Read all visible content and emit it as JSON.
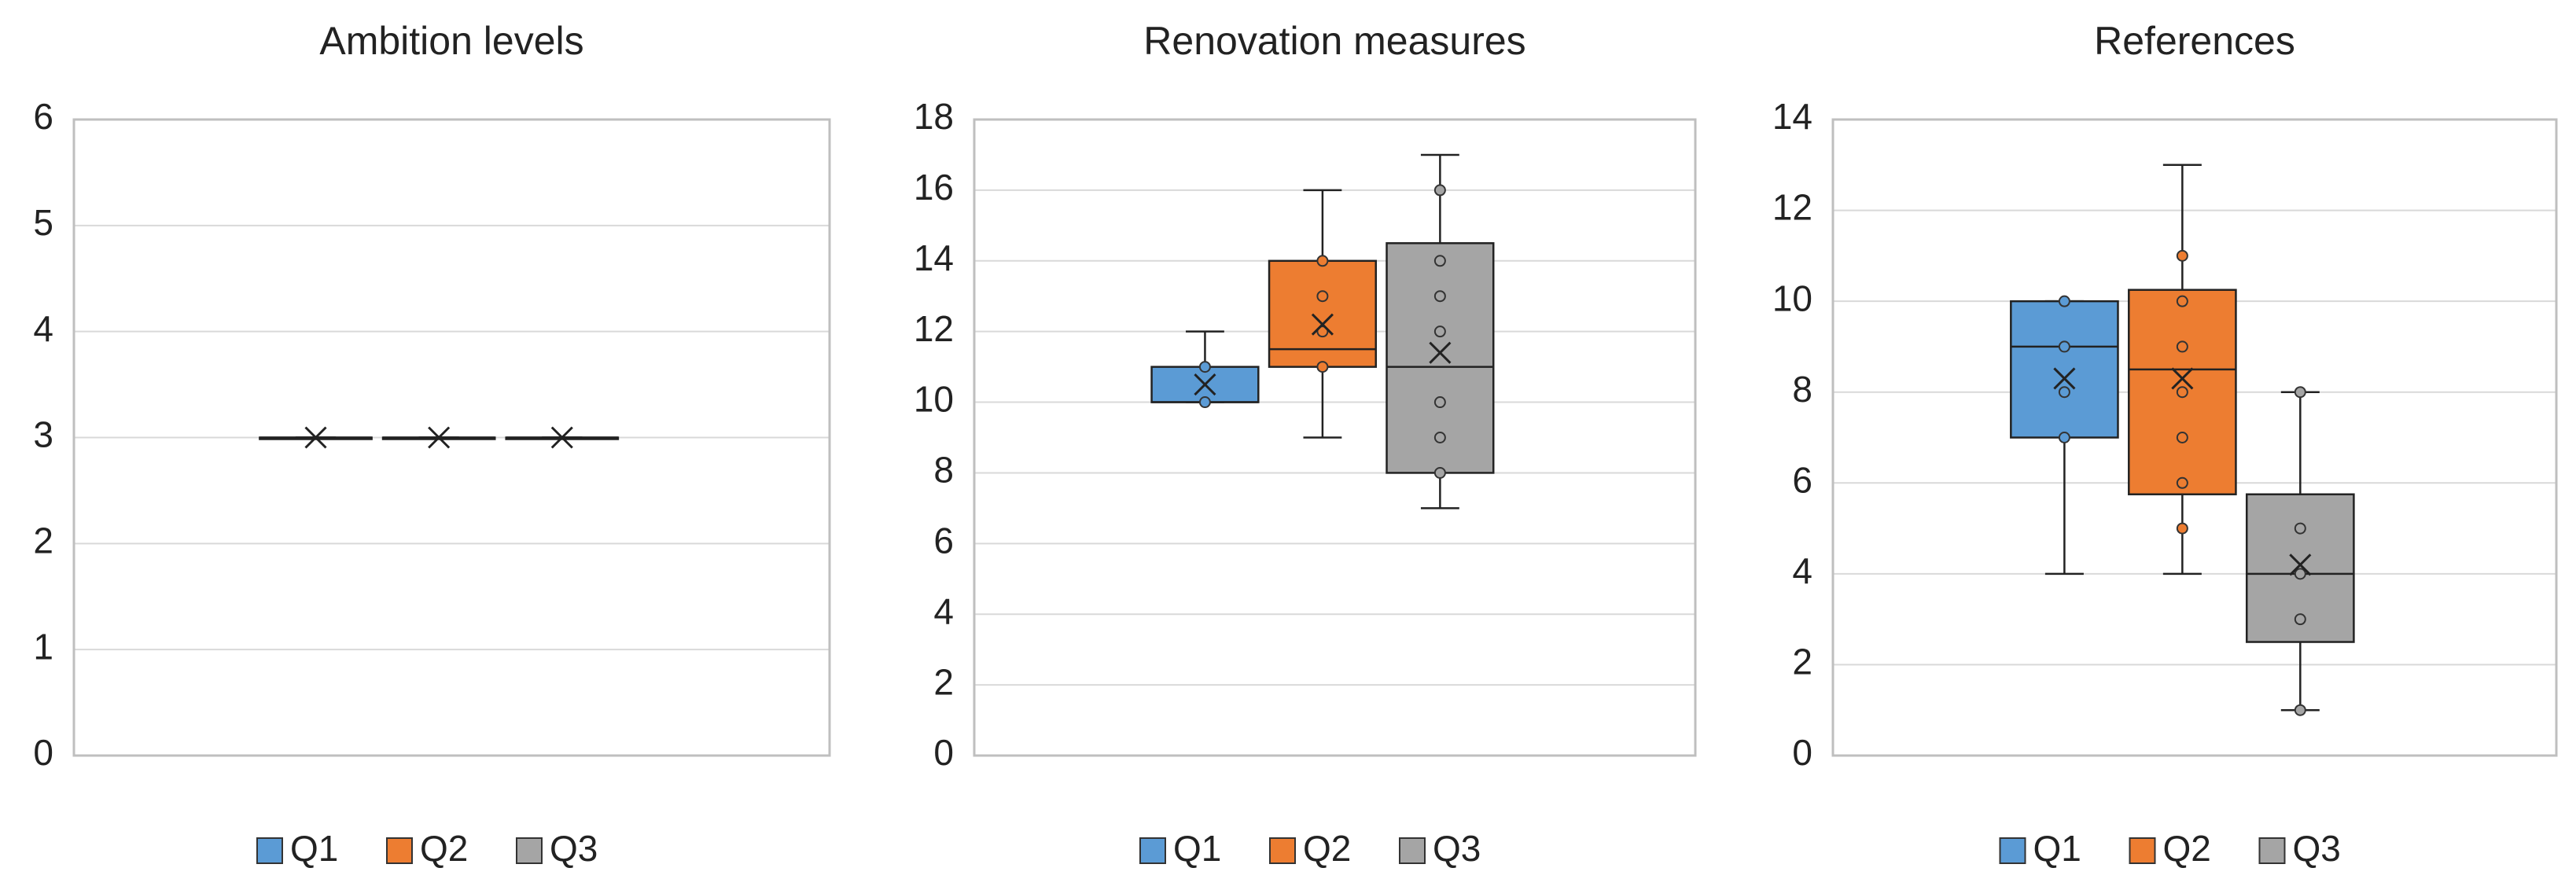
{
  "chart_data": [
    {
      "type": "box",
      "title": "Ambition levels",
      "ylim": [
        0,
        6
      ],
      "yticks": [
        0,
        1,
        2,
        3,
        4,
        5,
        6
      ],
      "grid": true,
      "series": [
        {
          "name": "Q1",
          "color": "#5b9bd5",
          "min": 3,
          "q1": 3,
          "median": 3,
          "q3": 3,
          "max": 3,
          "mean": 3,
          "points": []
        },
        {
          "name": "Q2",
          "color": "#ed7d31",
          "min": 3,
          "q1": 3,
          "median": 3,
          "q3": 3,
          "max": 3,
          "mean": 3,
          "points": []
        },
        {
          "name": "Q3",
          "color": "#a5a5a5",
          "min": 3,
          "q1": 3,
          "median": 3,
          "q3": 3,
          "max": 3,
          "mean": 3,
          "points": []
        }
      ]
    },
    {
      "type": "box",
      "title": "Renovation measures",
      "ylim": [
        0,
        18
      ],
      "yticks": [
        0,
        2,
        4,
        6,
        8,
        10,
        12,
        14,
        16,
        18
      ],
      "grid": true,
      "series": [
        {
          "name": "Q1",
          "color": "#5b9bd5",
          "min": 10,
          "q1": 10,
          "median": 10,
          "q3": 11,
          "max": 12,
          "mean": 10.5,
          "points": [
            10,
            11
          ]
        },
        {
          "name": "Q2",
          "color": "#ed7d31",
          "min": 9,
          "q1": 11,
          "median": 11.5,
          "q3": 14,
          "max": 16,
          "mean": 12.2,
          "points": [
            11,
            12,
            13,
            14
          ]
        },
        {
          "name": "Q3",
          "color": "#a5a5a5",
          "min": 7,
          "q1": 8,
          "median": 11,
          "q3": 14.5,
          "max": 17,
          "mean": 11.4,
          "points": [
            8,
            9,
            10,
            12,
            13,
            14,
            16
          ]
        }
      ]
    },
    {
      "type": "box",
      "title": "References",
      "ylim": [
        0,
        14
      ],
      "yticks": [
        0,
        2,
        4,
        6,
        8,
        10,
        12,
        14
      ],
      "grid": true,
      "series": [
        {
          "name": "Q1",
          "color": "#5b9bd5",
          "min": 4,
          "q1": 7,
          "median": 9,
          "q3": 10,
          "max": 10,
          "mean": 8.3,
          "points": [
            7,
            8,
            9,
            10
          ]
        },
        {
          "name": "Q2",
          "color": "#ed7d31",
          "min": 4,
          "q1": 5.75,
          "median": 8.5,
          "q3": 10.25,
          "max": 13,
          "mean": 8.3,
          "points": [
            5,
            6,
            7,
            8,
            9,
            10,
            11
          ]
        },
        {
          "name": "Q3",
          "color": "#a5a5a5",
          "min": 1,
          "q1": 2.5,
          "median": 4,
          "q3": 5.75,
          "max": 8,
          "mean": 4.2,
          "points": [
            1,
            3,
            4,
            5,
            8
          ]
        }
      ]
    }
  ]
}
